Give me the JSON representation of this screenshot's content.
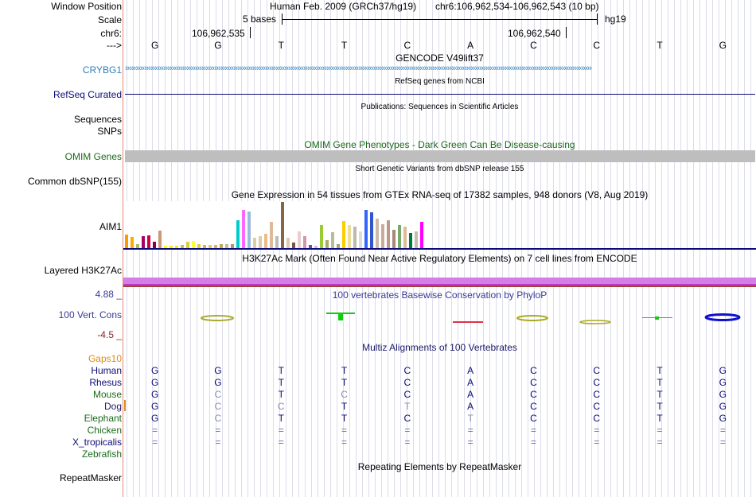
{
  "header": {
    "window_position_label": "Window Position",
    "scale_label": "Scale",
    "chrom_label": "chr6:",
    "strand_label": "--->",
    "assembly_text": "Human Feb. 2009 (GRCh37/hg19)",
    "position_text": "chr6:106,962,534-106,962,543 (10 bp)",
    "scale_text": "5 bases",
    "db_label": "hg19",
    "coord1": "106,962,535",
    "coord2": "106,962,540"
  },
  "bases": [
    "G",
    "G",
    "T",
    "T",
    "C",
    "A",
    "C",
    "C",
    "T",
    "G"
  ],
  "tracks": {
    "gencode": {
      "title": "GENCODE V49lift37",
      "gene": "CRYBG1"
    },
    "refseq": {
      "title": "RefSeq genes from NCBI",
      "label": "RefSeq Curated"
    },
    "publications": {
      "title": "Publications: Sequences in Scientific Articles",
      "label1": "Sequences",
      "label2": "SNPs"
    },
    "omim": {
      "title": "OMIM Gene Phenotypes - Dark Green Can Be Disease-causing",
      "label": "OMIM Genes"
    },
    "dbsnp": {
      "title": "Short Genetic Variants from dbSNP release 155",
      "label": "Common dbSNP(155)"
    },
    "gtex": {
      "title": "Gene Expression in 54 tissues from GTEx RNA-seq of 17382 samples, 948 donors (V8, Aug 2019)",
      "label": "AIM1"
    },
    "h3k27ac": {
      "title": "H3K27Ac Mark (Often Found Near Active Regulatory Elements) on 7 cell lines from ENCODE",
      "label": "Layered H3K27Ac"
    },
    "phylop": {
      "title": "100 vertebrates Basewise Conservation by PhyloP",
      "label": "100 Vert. Cons",
      "max": "4.88 _",
      "min": "-4.5 _"
    },
    "multiz": {
      "title": "Multiz Alignments of 100 Vertebrates",
      "gaps_label": "Gaps10"
    },
    "repeatmasker": {
      "title": "Repeating Elements by RepeatMasker",
      "label": "RepeatMasker"
    }
  },
  "species": [
    {
      "name": "Human",
      "seq": [
        "G",
        "G",
        "T",
        "T",
        "C",
        "A",
        "C",
        "C",
        "T",
        "G"
      ]
    },
    {
      "name": "Rhesus",
      "seq": [
        "G",
        "G",
        "T",
        "T",
        "C",
        "A",
        "C",
        "C",
        "T",
        "G"
      ]
    },
    {
      "name": "Mouse",
      "seq": [
        "G",
        "C",
        "T",
        "C",
        "C",
        "A",
        "C",
        "C",
        "T",
        "G"
      ]
    },
    {
      "name": "Dog",
      "seq": [
        "G",
        "C",
        "C",
        "T",
        "T",
        "A",
        "C",
        "C",
        "T",
        "G"
      ]
    },
    {
      "name": "Elephant",
      "seq": [
        "G",
        "C",
        "T",
        "T",
        "C",
        "T",
        "C",
        "C",
        "T",
        "G"
      ]
    },
    {
      "name": "Chicken",
      "seq": [
        "=",
        "=",
        "=",
        "=",
        "=",
        "=",
        "=",
        "=",
        "=",
        "="
      ]
    },
    {
      "name": "X_tropicalis",
      "seq": [
        "=",
        "=",
        "=",
        "=",
        "=",
        "=",
        "=",
        "=",
        "=",
        "="
      ]
    },
    {
      "name": "Zebrafish",
      "seq": [
        "",
        "",
        "",
        "",
        "",
        "",
        "",
        "",
        "",
        ""
      ]
    }
  ],
  "gtex_values": [
    18,
    14,
    5,
    15,
    17,
    8,
    23,
    3,
    3,
    3,
    4,
    8,
    9,
    5,
    4,
    4,
    4,
    5,
    5,
    5,
    36,
    50,
    48,
    13,
    16,
    19,
    34,
    16,
    60,
    13,
    7,
    22,
    16,
    4,
    3,
    30,
    10,
    21,
    5,
    35,
    30,
    28,
    22,
    50,
    47,
    38,
    31,
    36,
    24,
    30,
    28,
    20,
    22,
    34
  ],
  "gtex_colors": [
    "#ff9900",
    "#ffaa00",
    "#aabb66",
    "#aa0066",
    "#cc0044",
    "#880044",
    "#cc9977",
    "#ffff00",
    "#ffee00",
    "#eeee00",
    "#ccbb55",
    "#ddcc33",
    "#ffff33",
    "#ddcc44",
    "#ccbb44",
    "#ddcc55",
    "#ccbb66",
    "#bbaa55",
    "#ccbb88",
    "#aa9966",
    "#00cccc",
    "#ff66ff",
    "#99bbdd",
    "#ddccaa",
    "#ddccaa",
    "#eebb88",
    "#ddbb99",
    "#bbbbbb",
    "#886644",
    "#ddccaa",
    "#775544",
    "#eecccc",
    "#cc99aa",
    "#7744aa",
    "#ccbbdd",
    "#99cc33",
    "#aaaa66",
    "#bbbb99",
    "#99aa77",
    "#ffcc00",
    "#eedd99",
    "#bbbbaa",
    "#dddddd",
    "#3366ff",
    "#3355cc",
    "#ccbbaa",
    "#ccaa99",
    "#bb9988",
    "#aa8877",
    "#77aa66",
    "#ddbb99",
    "#007744",
    "#ccbbaa",
    "#ff00ff"
  ]
}
